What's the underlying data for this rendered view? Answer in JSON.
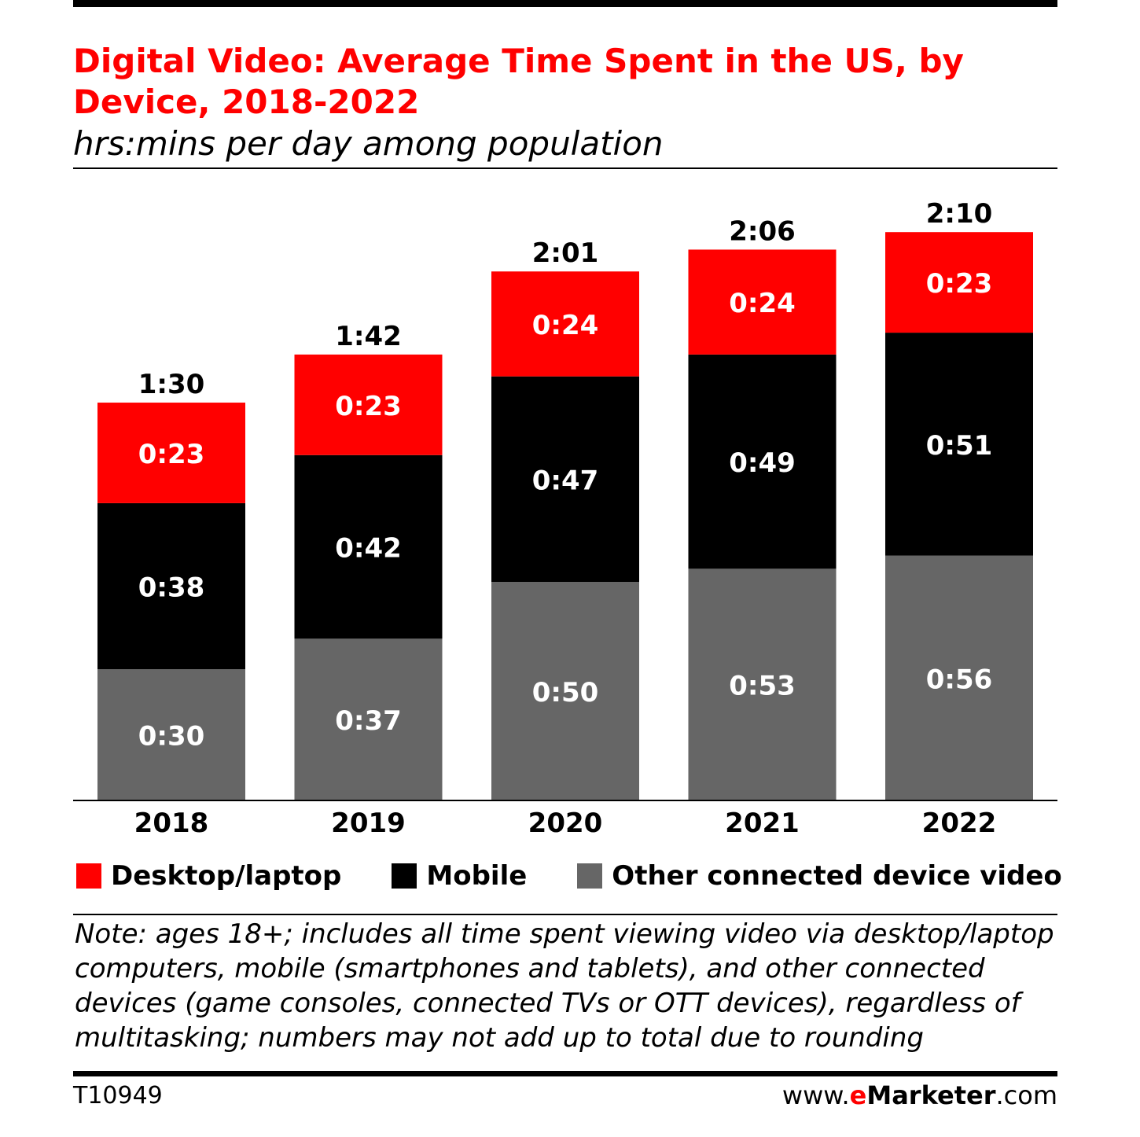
{
  "header": {
    "title": "Digital Video: Average Time Spent in the US, by Device, 2018-2022",
    "subtitle": "hrs:mins per day among population"
  },
  "chart_data": {
    "type": "bar",
    "stacked": true,
    "title": "Digital Video: Average Time Spent in the US, by Device, 2018-2022",
    "subtitle": "hrs:mins per day among population",
    "unit": "hrs:mins",
    "categories": [
      "2018",
      "2019",
      "2020",
      "2021",
      "2022"
    ],
    "series": [
      {
        "name": "Other connected device video",
        "color": "#666666",
        "values": [
          "0:30",
          "0:37",
          "0:50",
          "0:53",
          "0:56"
        ]
      },
      {
        "name": "Mobile",
        "color": "#000000",
        "values": [
          "0:38",
          "0:42",
          "0:47",
          "0:49",
          "0:51"
        ]
      },
      {
        "name": "Desktop/laptop",
        "color": "#ff0000",
        "values": [
          "0:23",
          "0:23",
          "0:24",
          "0:24",
          "0:23"
        ]
      }
    ],
    "totals": [
      "1:30",
      "1:42",
      "2:01",
      "2:06",
      "2:10"
    ],
    "legend_position": "bottom",
    "grid": false
  },
  "legend": [
    {
      "label": "Desktop/laptop",
      "color": "#ff0000"
    },
    {
      "label": "Mobile",
      "color": "#000000"
    },
    {
      "label": "Other connected device video",
      "color": "#666666"
    }
  ],
  "note": "Note: ages 18+; includes all time spent viewing video via desktop/laptop computers, mobile (smartphones and tablets), and other connected devices (game consoles, connected TVs or OTT devices), regardless of multitasking; numbers may not add up to total due to rounding",
  "footer": {
    "code": "T10949",
    "site_prefix": "www.",
    "site_e": "e",
    "site_brand": "Marketer",
    "site_suffix": ".com"
  }
}
